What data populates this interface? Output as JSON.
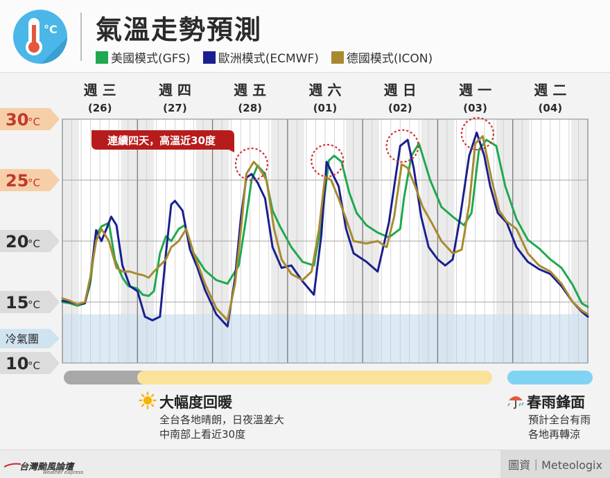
{
  "header": {
    "title": "氣溫走勢預測",
    "legend": [
      {
        "label": "美國模式(GFS)",
        "color": "#1fa84f"
      },
      {
        "label": "歐洲模式(ECMWF)",
        "color": "#1a1f8f"
      },
      {
        "label": "德國模式(ICON)",
        "color": "#a88a2e"
      }
    ],
    "logo_icon": "thermometer-celsius-icon"
  },
  "chart_data": {
    "type": "line",
    "days": [
      {
        "weekday": "週 三",
        "date": "(26)"
      },
      {
        "weekday": "週 四",
        "date": "(27)"
      },
      {
        "weekday": "週 五",
        "date": "(28)"
      },
      {
        "weekday": "週 六",
        "date": "(01)"
      },
      {
        "weekday": "週 日",
        "date": "(02)"
      },
      {
        "weekday": "週 一",
        "date": "(03)"
      },
      {
        "weekday": "週 二",
        "date": "(04)"
      }
    ],
    "y_ticks": [
      {
        "value": 30,
        "label": "30",
        "unit": "°C"
      },
      {
        "value": 25,
        "label": "25",
        "unit": "°C"
      },
      {
        "value": 20,
        "label": "20",
        "unit": "°C"
      },
      {
        "value": 15,
        "label": "15",
        "unit": "°C"
      },
      {
        "value": 10,
        "label": "10",
        "unit": "°C"
      }
    ],
    "ylim": [
      10,
      30
    ],
    "x_range_days": [
      0,
      7
    ],
    "grid": true,
    "cold_zone": {
      "label": "冷氣團",
      "from": 10,
      "to": 14,
      "color": "#cfe3f0"
    },
    "annotation": {
      "text": "連續四天，高溫近30度",
      "color": "#b71c1c"
    },
    "peak_markers": [
      {
        "x": 2.52,
        "y": 26.3
      },
      {
        "x": 3.53,
        "y": 26.6
      },
      {
        "x": 4.53,
        "y": 27.8
      },
      {
        "x": 5.53,
        "y": 28.8
      }
    ],
    "series": [
      {
        "name": "美國模式(GFS)",
        "color": "#1fa84f",
        "x": [
          0,
          0.1,
          0.2,
          0.3,
          0.37,
          0.45,
          0.52,
          0.62,
          0.7,
          0.8,
          0.88,
          1.0,
          1.07,
          1.15,
          1.22,
          1.3,
          1.38,
          1.45,
          1.55,
          1.63,
          1.75,
          1.9,
          2.05,
          2.2,
          2.35,
          2.45,
          2.52,
          2.6,
          2.7,
          2.8,
          2.9,
          3.05,
          3.2,
          3.35,
          3.45,
          3.55,
          3.62,
          3.72,
          3.82,
          3.92,
          4.05,
          4.2,
          4.35,
          4.5,
          4.55,
          4.65,
          4.75,
          4.9,
          5.05,
          5.2,
          5.35,
          5.45,
          5.55,
          5.65,
          5.78,
          5.9,
          6.05,
          6.2,
          6.35,
          6.5,
          6.65,
          6.8,
          6.92,
          7.0
        ],
        "y": [
          15.0,
          14.9,
          14.7,
          14.9,
          16.5,
          20.5,
          21.2,
          21.5,
          18.5,
          17.0,
          16.3,
          16.1,
          15.6,
          15.5,
          15.9,
          19.0,
          20.4,
          20.0,
          21.0,
          21.3,
          19.0,
          17.6,
          16.8,
          16.5,
          18.0,
          22.0,
          25.0,
          26.2,
          25.5,
          22.5,
          21.2,
          19.5,
          18.3,
          18.0,
          21.5,
          26.6,
          27.0,
          26.5,
          24.0,
          22.3,
          21.3,
          20.7,
          20.3,
          21.0,
          23.5,
          27.0,
          28.0,
          25.0,
          22.8,
          22.0,
          21.3,
          22.3,
          27.5,
          28.3,
          27.8,
          24.5,
          21.8,
          20.1,
          19.4,
          18.5,
          17.8,
          16.4,
          14.9,
          14.6
        ]
      },
      {
        "name": "歐洲模式(ECMWF)",
        "color": "#1a1f8f",
        "x": [
          0,
          0.1,
          0.2,
          0.3,
          0.37,
          0.45,
          0.52,
          0.6,
          0.65,
          0.72,
          0.8,
          0.9,
          1.0,
          1.1,
          1.2,
          1.3,
          1.38,
          1.45,
          1.5,
          1.6,
          1.7,
          1.8,
          1.9,
          2.05,
          2.2,
          2.3,
          2.38,
          2.45,
          2.52,
          2.6,
          2.7,
          2.8,
          2.92,
          3.05,
          3.2,
          3.35,
          3.45,
          3.52,
          3.6,
          3.68,
          3.78,
          3.88,
          4.05,
          4.2,
          4.35,
          4.5,
          4.6,
          4.68,
          4.78,
          4.88,
          5.0,
          5.1,
          5.2,
          5.3,
          5.42,
          5.52,
          5.62,
          5.7,
          5.8,
          5.92,
          6.05,
          6.2,
          6.35,
          6.5,
          6.65,
          6.8,
          6.92,
          7.0
        ],
        "y": [
          15.1,
          15.0,
          14.8,
          14.9,
          16.8,
          20.9,
          20.0,
          21.2,
          22.0,
          21.3,
          18.0,
          16.3,
          15.9,
          13.8,
          13.5,
          13.8,
          19.0,
          23.0,
          23.3,
          22.5,
          19.3,
          17.8,
          16.0,
          14.0,
          13.0,
          17.0,
          22.0,
          25.2,
          25.5,
          24.8,
          23.5,
          19.5,
          17.8,
          18.0,
          16.7,
          15.6,
          20.5,
          26.5,
          25.5,
          24.5,
          21.0,
          19.0,
          18.3,
          17.5,
          21.5,
          27.8,
          28.3,
          26.0,
          22.0,
          19.5,
          18.5,
          18.0,
          18.5,
          22.0,
          27.0,
          28.9,
          27.0,
          24.5,
          22.3,
          21.5,
          19.5,
          18.3,
          17.7,
          17.3,
          16.3,
          15.0,
          14.2,
          13.8
        ]
      },
      {
        "name": "德國模式(ICON)",
        "color": "#a88a2e",
        "x": [
          0,
          0.1,
          0.2,
          0.3,
          0.37,
          0.45,
          0.52,
          0.62,
          0.72,
          0.8,
          0.9,
          1.0,
          1.08,
          1.15,
          1.22,
          1.3,
          1.38,
          1.45,
          1.55,
          1.65,
          1.75,
          1.9,
          2.05,
          2.2,
          2.3,
          2.38,
          2.45,
          2.55,
          2.62,
          2.72,
          2.82,
          2.92,
          3.05,
          3.2,
          3.32,
          3.42,
          3.5,
          3.58,
          3.68,
          3.78,
          3.88,
          4.05,
          4.2,
          4.32,
          4.42,
          4.52,
          4.6,
          4.7,
          4.8,
          4.92,
          5.05,
          5.2,
          5.32,
          5.42,
          5.5,
          5.6,
          5.72,
          5.82,
          5.92,
          6.05,
          6.2,
          6.35,
          6.5,
          6.65,
          6.8,
          6.92,
          7.0
        ],
        "y": [
          15.3,
          15.1,
          14.8,
          15.0,
          17.0,
          20.0,
          21.0,
          20.0,
          17.8,
          17.5,
          17.5,
          17.3,
          17.2,
          17.0,
          17.5,
          18.0,
          18.5,
          19.5,
          20.0,
          21.0,
          19.0,
          16.5,
          14.5,
          13.5,
          16.5,
          21.0,
          25.5,
          26.5,
          26.0,
          25.0,
          21.0,
          18.5,
          17.3,
          16.8,
          17.5,
          21.0,
          25.3,
          25.0,
          23.5,
          21.8,
          20.0,
          19.8,
          20.0,
          19.5,
          22.0,
          26.3,
          26.0,
          24.5,
          22.8,
          21.5,
          20.0,
          19.0,
          19.3,
          23.0,
          28.0,
          28.6,
          25.0,
          22.5,
          21.6,
          21.0,
          19.0,
          18.0,
          17.5,
          16.5,
          15.0,
          14.3,
          14.0
        ]
      }
    ]
  },
  "timeline": {
    "warm_label": "大幅度回暖",
    "warm_lines": [
      "全台各地晴朗，日夜溫差大",
      "中南部上看近30度"
    ],
    "rain_label": "春雨鋒面",
    "rain_lines": [
      "預計全台有雨",
      "各地再轉涼"
    ],
    "colors": {
      "gray": "#a8a8a8",
      "warm": "#fbe29a",
      "rain": "#7fd3f3"
    },
    "warm_icon": "sun-icon",
    "rain_icon": "umbrella-icon"
  },
  "footer": {
    "brand": "台灣颱風論壇",
    "brand_sub": "weather express",
    "credit": "圖資｜Meteologix"
  }
}
